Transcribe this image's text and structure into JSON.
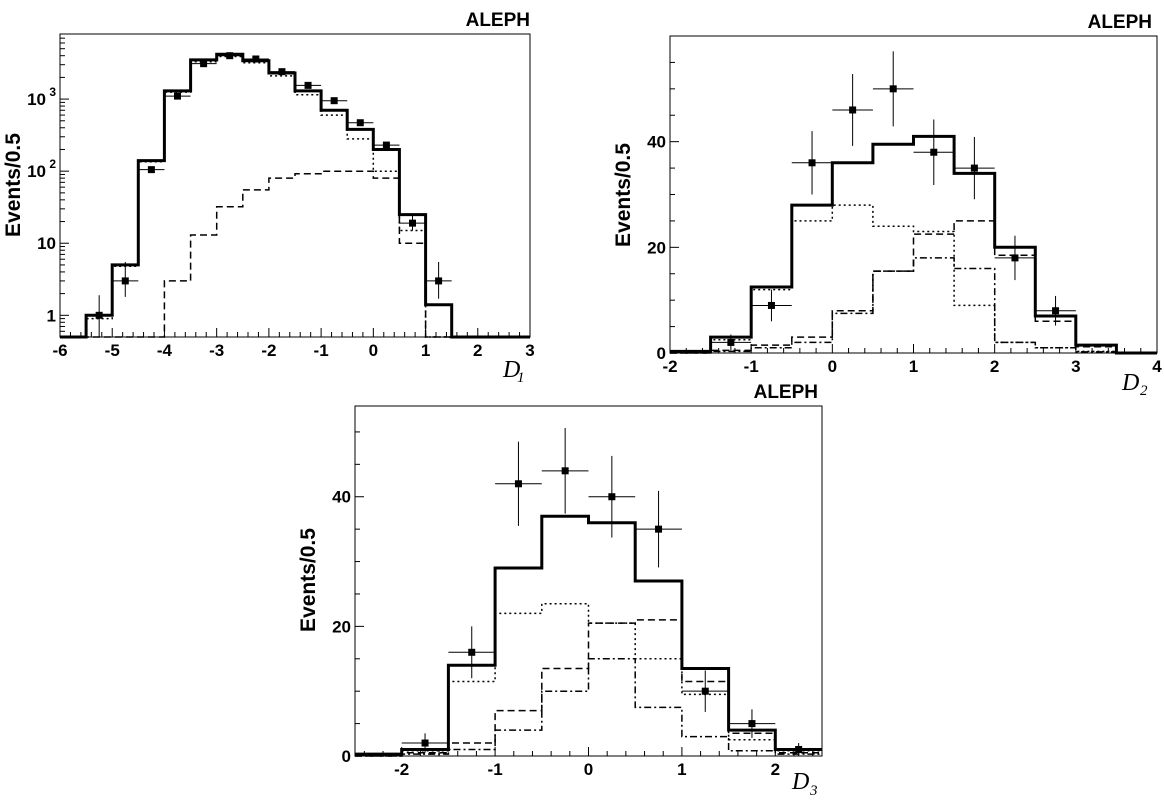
{
  "chart_data": [
    {
      "type": "histogram",
      "experiment_label": "ALEPH",
      "ylabel": "Events/0.5",
      "xlabel": "D",
      "xlabel_subscript": "1",
      "yscale": "log",
      "xlim": [
        -6,
        3
      ],
      "ylim": [
        0.5,
        8000
      ],
      "bin_width": 0.5,
      "x_ticks": [
        -6,
        -5,
        -4,
        -3,
        -2,
        -1,
        0,
        1,
        2,
        3
      ],
      "y_ticks": [
        {
          "value": 1,
          "base": "1",
          "exp": ""
        },
        {
          "value": 10,
          "base": "10",
          "exp": ""
        },
        {
          "value": 100,
          "base": "10",
          "exp": "2"
        },
        {
          "value": 1000,
          "base": "10",
          "exp": "3"
        }
      ],
      "bin_edges": [
        -6,
        -5.5,
        -5,
        -4.5,
        -4,
        -3.5,
        -3,
        -2.5,
        -2,
        -1.5,
        -1,
        -0.5,
        0,
        0.5,
        1,
        1.5,
        2,
        2.5,
        3
      ],
      "series": [
        {
          "style": "solid",
          "values": [
            0.5,
            1.0,
            5.0,
            140,
            1300,
            3500,
            4200,
            3400,
            2300,
            1300,
            700,
            380,
            200,
            25,
            1.4,
            0.5,
            0.5,
            0.5
          ]
        },
        {
          "style": "dotted",
          "values": [
            0.5,
            0.9,
            4.8,
            135,
            1250,
            3300,
            3900,
            3200,
            2100,
            1150,
            600,
            280,
            100,
            15,
            0.5,
            0.5,
            0.5,
            0.5
          ]
        },
        {
          "style": "dashed",
          "values": [
            0.5,
            0.5,
            0.5,
            0.5,
            3,
            13,
            32,
            55,
            80,
            92,
            100,
            100,
            80,
            10,
            0.5,
            0.5,
            0.5,
            0.5
          ]
        }
      ],
      "points": [
        {
          "x": -5.25,
          "y": 1.0,
          "err_lo": 0.5,
          "err_hi": 1.9
        },
        {
          "x": -4.75,
          "y": 3.0,
          "err_lo": 1.8,
          "err_hi": 5.5
        },
        {
          "x": -4.25,
          "y": 105
        },
        {
          "x": -3.75,
          "y": 1100
        },
        {
          "x": -3.25,
          "y": 3100
        },
        {
          "x": -2.75,
          "y": 4000
        },
        {
          "x": -2.25,
          "y": 3600
        },
        {
          "x": -1.75,
          "y": 2400
        },
        {
          "x": -1.25,
          "y": 1550
        },
        {
          "x": -0.75,
          "y": 950
        },
        {
          "x": -0.25,
          "y": 470
        },
        {
          "x": 0.25,
          "y": 230
        },
        {
          "x": 0.75,
          "y": 19,
          "err_lo": 15,
          "err_hi": 24
        },
        {
          "x": 1.25,
          "y": 3.0,
          "err_lo": 1.7,
          "err_hi": 5.5
        }
      ]
    },
    {
      "type": "histogram",
      "experiment_label": "ALEPH",
      "ylabel": "Events/0.5",
      "xlabel": "D",
      "xlabel_subscript": "2",
      "yscale": "linear",
      "xlim": [
        -2,
        4
      ],
      "ylim": [
        0,
        60
      ],
      "bin_width": 0.5,
      "x_ticks": [
        -2,
        -1,
        0,
        1,
        2,
        3,
        4
      ],
      "y_ticks": [
        {
          "value": 0,
          "base": "0",
          "exp": ""
        },
        {
          "value": 20,
          "base": "20",
          "exp": ""
        },
        {
          "value": 40,
          "base": "40",
          "exp": ""
        }
      ],
      "bin_edges": [
        -2,
        -1.5,
        -1,
        -0.5,
        0,
        0.5,
        1,
        1.5,
        2,
        2.5,
        3,
        3.5,
        4
      ],
      "series": [
        {
          "style": "solid",
          "values": [
            0.3,
            3,
            12.5,
            28,
            36,
            39.5,
            41,
            34,
            20,
            7,
            1.5,
            0
          ]
        },
        {
          "style": "dotted",
          "values": [
            0.3,
            2.5,
            12,
            25,
            28,
            24,
            23,
            9,
            2,
            1,
            0.3,
            0
          ]
        },
        {
          "style": "dashed",
          "values": [
            0,
            0.5,
            1.5,
            3,
            8,
            15.5,
            22.5,
            25,
            18.5,
            6,
            1.2,
            0
          ]
        },
        {
          "style": "dashdot",
          "values": [
            0,
            0.3,
            1,
            2,
            7.5,
            15.5,
            18,
            16,
            2,
            1,
            0.2,
            0
          ]
        }
      ],
      "points": [
        {
          "x": -1.25,
          "y": 2,
          "err": 1.5
        },
        {
          "x": -0.75,
          "y": 9,
          "err": 3
        },
        {
          "x": -0.25,
          "y": 36,
          "err": 6
        },
        {
          "x": 0.25,
          "y": 46,
          "err": 6.8
        },
        {
          "x": 0.75,
          "y": 50,
          "err": 7.1
        },
        {
          "x": 1.25,
          "y": 38,
          "err": 6.2
        },
        {
          "x": 1.75,
          "y": 35,
          "err": 5.9
        },
        {
          "x": 2.25,
          "y": 18,
          "err": 4.2
        },
        {
          "x": 2.75,
          "y": 8,
          "err": 2.8
        }
      ]
    },
    {
      "type": "histogram",
      "experiment_label": "ALEPH",
      "ylabel": "Events/0.5",
      "xlabel": "D",
      "xlabel_subscript": "3",
      "yscale": "linear",
      "xlim": [
        -2.5,
        2.5
      ],
      "ylim": [
        0,
        54
      ],
      "bin_width": 0.5,
      "x_ticks": [
        -2,
        -1,
        0,
        1,
        2
      ],
      "y_ticks": [
        {
          "value": 0,
          "base": "0",
          "exp": ""
        },
        {
          "value": 20,
          "base": "20",
          "exp": ""
        },
        {
          "value": 40,
          "base": "40",
          "exp": ""
        }
      ],
      "bin_edges": [
        -2.5,
        -2,
        -1.5,
        -1,
        -0.5,
        0,
        0.5,
        1,
        1.5,
        2,
        2.5
      ],
      "series": [
        {
          "style": "solid",
          "values": [
            0.3,
            1,
            14,
            29,
            37,
            36,
            27,
            13.5,
            4,
            1
          ]
        },
        {
          "style": "dotted",
          "values": [
            0.3,
            0.8,
            11.5,
            22,
            23.5,
            20.5,
            15,
            9.5,
            2.5,
            0.8
          ]
        },
        {
          "style": "dashed",
          "values": [
            0,
            0.5,
            2,
            7,
            13.5,
            20.5,
            21,
            11.5,
            3.5,
            0.5
          ]
        },
        {
          "style": "dashdot",
          "values": [
            0,
            0.3,
            1,
            4,
            10,
            15,
            7.5,
            3,
            0.8,
            0.3
          ]
        }
      ],
      "points": [
        {
          "x": -1.75,
          "y": 2,
          "err": 1.5
        },
        {
          "x": -1.25,
          "y": 16,
          "err": 4
        },
        {
          "x": -0.75,
          "y": 42,
          "err": 6.5
        },
        {
          "x": -0.25,
          "y": 44,
          "err": 6.6
        },
        {
          "x": 0.25,
          "y": 40,
          "err": 6.3
        },
        {
          "x": 0.75,
          "y": 35,
          "err": 5.9
        },
        {
          "x": 1.25,
          "y": 10,
          "err": 3.2
        },
        {
          "x": 1.75,
          "y": 5,
          "err": 2.2
        },
        {
          "x": 2.25,
          "y": 1,
          "err": 1
        }
      ]
    }
  ]
}
